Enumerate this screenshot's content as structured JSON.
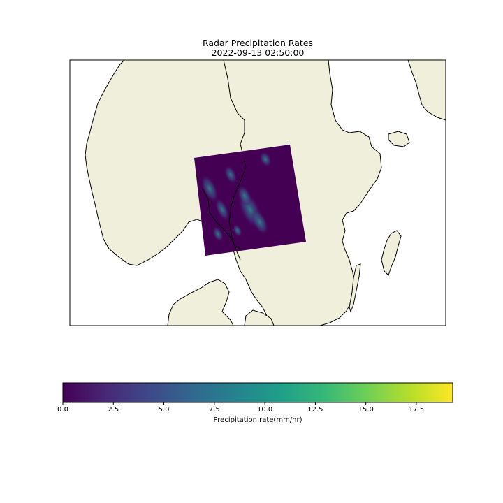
{
  "title": "Radar Precipitation Rates",
  "subtitle": "2022-09-13 02:50:00",
  "colorbar": {
    "label": "Precipitation rate(mm/hr)",
    "vmin": 0.0,
    "vmax": 19.3,
    "ticks": [
      {
        "value": 0.0,
        "label": "0.0"
      },
      {
        "value": 2.5,
        "label": "2.5"
      },
      {
        "value": 5.0,
        "label": "5.0"
      },
      {
        "value": 7.5,
        "label": "7.5"
      },
      {
        "value": 10.0,
        "label": "10.0"
      },
      {
        "value": 12.5,
        "label": "12.5"
      },
      {
        "value": 15.0,
        "label": "15.0"
      },
      {
        "value": 17.5,
        "label": "17.5"
      }
    ],
    "colormap": [
      "#440154",
      "#482878",
      "#3e4989",
      "#31688e",
      "#26828e",
      "#1f9e89",
      "#35b779",
      "#6ece58",
      "#b5de2b",
      "#fde725"
    ]
  },
  "colors": {
    "land": "#efefdb",
    "sea": "#ffffff",
    "radar_background": "#440154",
    "coastline": "#000000"
  }
}
